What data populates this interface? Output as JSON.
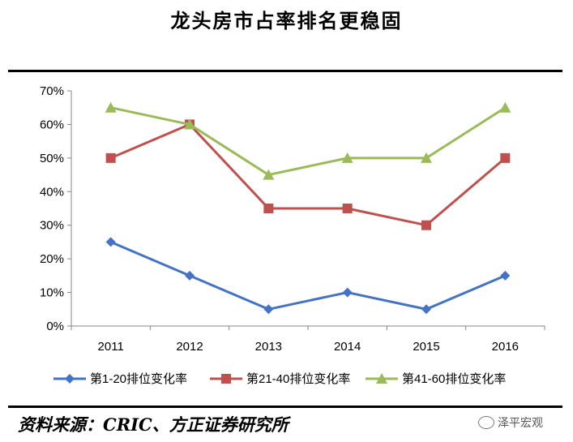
{
  "chart_data": {
    "type": "line",
    "title": "龙头房市占率排名更稳固",
    "categories": [
      "2011",
      "2012",
      "2013",
      "2014",
      "2015",
      "2016"
    ],
    "ylim": [
      0,
      70
    ],
    "yticks": [
      "0%",
      "10%",
      "20%",
      "30%",
      "40%",
      "50%",
      "60%",
      "70%"
    ],
    "grid": false,
    "legend_position": "bottom",
    "series": [
      {
        "name": "第1-20排位变化率",
        "values": [
          25,
          15,
          5,
          10,
          5,
          15
        ],
        "color": "#4472C4",
        "marker": "diamond"
      },
      {
        "name": "第21-40排位变化率",
        "values": [
          50,
          60,
          35,
          35,
          30,
          50
        ],
        "color": "#C0504D",
        "marker": "square"
      },
      {
        "name": "第41-60排位变化率",
        "values": [
          65,
          60,
          45,
          50,
          50,
          65
        ],
        "color": "#9BBB59",
        "marker": "triangle"
      }
    ]
  },
  "source": "资料来源：CRIC、方正证券研究所",
  "watermark": "泽平宏观"
}
